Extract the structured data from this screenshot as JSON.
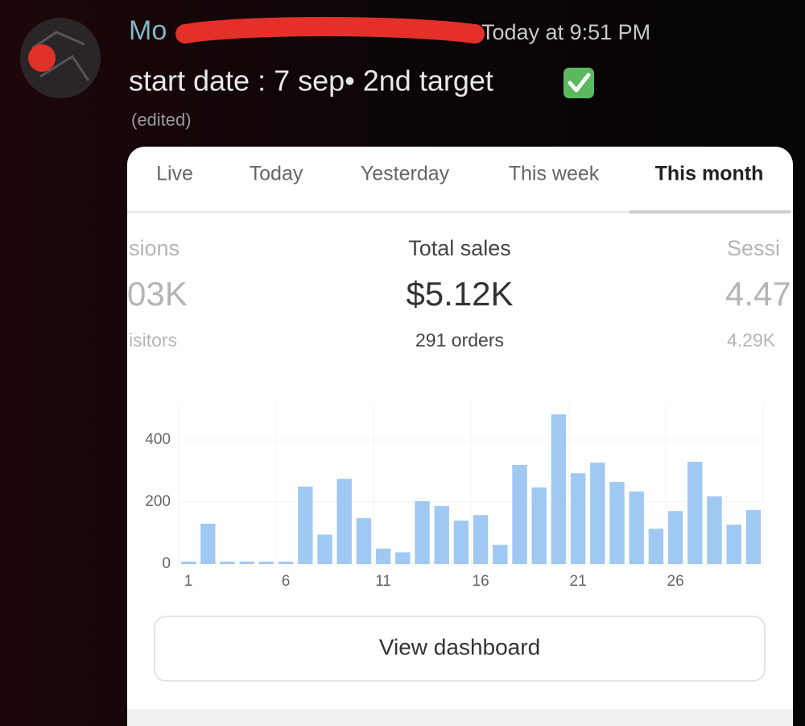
{
  "message": {
    "author": "Mo",
    "timestamp": "Today at 9:51 PM",
    "text": "start date : 7 sep•  2nd target",
    "edited": "(edited)"
  },
  "tabs": [
    "Live",
    "Today",
    "Yesterday",
    "This week",
    "This month"
  ],
  "metrics": [
    {
      "label": "sions",
      "value": "03K",
      "sub": "isitors"
    },
    {
      "label": "Total sales",
      "value": "$5.12K",
      "sub": "291 orders"
    },
    {
      "label": "Sessi",
      "value": "4.47",
      "sub": "4.29K"
    }
  ],
  "chart_data": {
    "type": "bar",
    "categories": [
      "1",
      null,
      null,
      null,
      null,
      "6",
      null,
      null,
      null,
      null,
      "11",
      null,
      null,
      null,
      null,
      "16",
      null,
      null,
      null,
      null,
      "21",
      null,
      null,
      null,
      null,
      "26",
      null,
      null,
      null,
      null
    ],
    "values": [
      0,
      130,
      0,
      0,
      0,
      0,
      250,
      95,
      275,
      148,
      50,
      38,
      203,
      187,
      140,
      158,
      62,
      320,
      247,
      483,
      293,
      327,
      265,
      234,
      114,
      171,
      330,
      218,
      127,
      174
    ],
    "color": "#9fc9f3",
    "ylim": [
      0,
      520
    ],
    "yticks": [
      0,
      200,
      400
    ],
    "grid": true
  },
  "button": "View dashboard"
}
